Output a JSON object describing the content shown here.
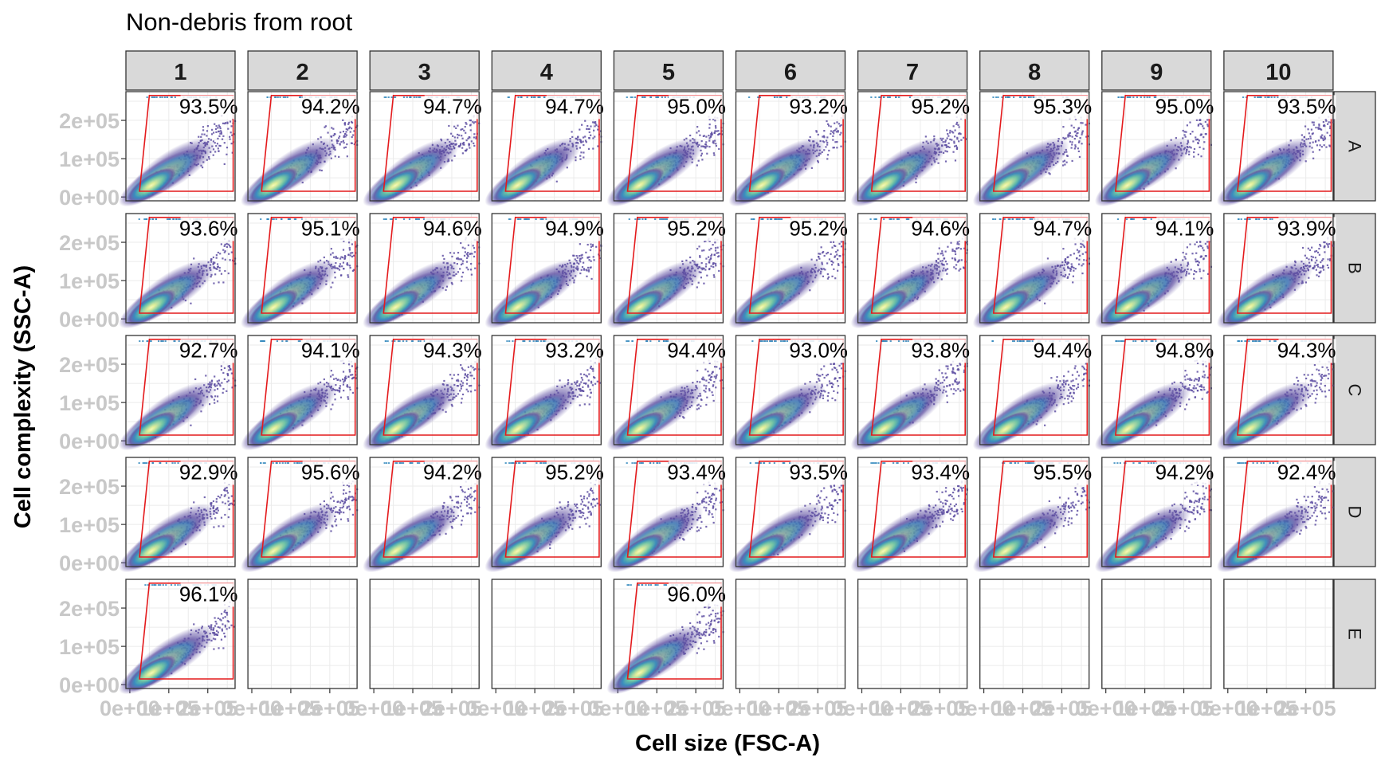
{
  "chart_data": {
    "type": "scatter",
    "subtype": "flow-cytometry-density-faceted",
    "title": "Non-debris from root",
    "xlabel": "Cell size (FSC-A)",
    "ylabel": "Cell complexity (SSC-A)",
    "columns": [
      "1",
      "2",
      "3",
      "4",
      "5",
      "6",
      "7",
      "8",
      "9",
      "10"
    ],
    "rows": [
      "A",
      "B",
      "C",
      "D",
      "E"
    ],
    "x_ticks": [
      "0e+00",
      "1e+05",
      "2e+05"
    ],
    "y_ticks": [
      "0e+00",
      "1e+05",
      "2e+05"
    ],
    "xlim": [
      -10000,
      270000
    ],
    "ylim": [
      -10000,
      275000
    ],
    "gate_polygon": [
      [
        25000,
        15000
      ],
      [
        50000,
        265000
      ],
      [
        265000,
        265000
      ],
      [
        265000,
        15000
      ]
    ],
    "grid": true,
    "colors": {
      "gate": "#e41a1c",
      "strip_fill": "#d9d9d9",
      "panel_border": "#333333",
      "grid": "#ebebeb",
      "density_low": "#5e4fa2",
      "density_mid": "#3288bd",
      "density_high": "#abdda4",
      "density_peak": "#ffffbf",
      "tick_label": "#c8c8c8"
    },
    "panels": [
      {
        "row": "A",
        "col": "1",
        "percent": "93.5%"
      },
      {
        "row": "A",
        "col": "2",
        "percent": "94.2%"
      },
      {
        "row": "A",
        "col": "3",
        "percent": "94.7%"
      },
      {
        "row": "A",
        "col": "4",
        "percent": "94.7%"
      },
      {
        "row": "A",
        "col": "5",
        "percent": "95.0%"
      },
      {
        "row": "A",
        "col": "6",
        "percent": "93.2%"
      },
      {
        "row": "A",
        "col": "7",
        "percent": "95.2%"
      },
      {
        "row": "A",
        "col": "8",
        "percent": "95.3%"
      },
      {
        "row": "A",
        "col": "9",
        "percent": "95.0%"
      },
      {
        "row": "A",
        "col": "10",
        "percent": "93.5%"
      },
      {
        "row": "B",
        "col": "1",
        "percent": "93.6%"
      },
      {
        "row": "B",
        "col": "2",
        "percent": "95.1%"
      },
      {
        "row": "B",
        "col": "3",
        "percent": "94.6%"
      },
      {
        "row": "B",
        "col": "4",
        "percent": "94.9%"
      },
      {
        "row": "B",
        "col": "5",
        "percent": "95.2%"
      },
      {
        "row": "B",
        "col": "6",
        "percent": "95.2%"
      },
      {
        "row": "B",
        "col": "7",
        "percent": "94.6%"
      },
      {
        "row": "B",
        "col": "8",
        "percent": "94.7%"
      },
      {
        "row": "B",
        "col": "9",
        "percent": "94.1%"
      },
      {
        "row": "B",
        "col": "10",
        "percent": "93.9%"
      },
      {
        "row": "C",
        "col": "1",
        "percent": "92.7%"
      },
      {
        "row": "C",
        "col": "2",
        "percent": "94.1%"
      },
      {
        "row": "C",
        "col": "3",
        "percent": "94.3%"
      },
      {
        "row": "C",
        "col": "4",
        "percent": "93.2%"
      },
      {
        "row": "C",
        "col": "5",
        "percent": "94.4%"
      },
      {
        "row": "C",
        "col": "6",
        "percent": "93.0%"
      },
      {
        "row": "C",
        "col": "7",
        "percent": "93.8%"
      },
      {
        "row": "C",
        "col": "8",
        "percent": "94.4%"
      },
      {
        "row": "C",
        "col": "9",
        "percent": "94.8%"
      },
      {
        "row": "C",
        "col": "10",
        "percent": "94.3%"
      },
      {
        "row": "D",
        "col": "1",
        "percent": "92.9%"
      },
      {
        "row": "D",
        "col": "2",
        "percent": "95.6%"
      },
      {
        "row": "D",
        "col": "3",
        "percent": "94.2%"
      },
      {
        "row": "D",
        "col": "4",
        "percent": "95.2%"
      },
      {
        "row": "D",
        "col": "5",
        "percent": "93.4%"
      },
      {
        "row": "D",
        "col": "6",
        "percent": "93.5%"
      },
      {
        "row": "D",
        "col": "7",
        "percent": "93.4%"
      },
      {
        "row": "D",
        "col": "8",
        "percent": "95.5%"
      },
      {
        "row": "D",
        "col": "9",
        "percent": "94.2%"
      },
      {
        "row": "D",
        "col": "10",
        "percent": "92.4%"
      },
      {
        "row": "E",
        "col": "1",
        "percent": "96.1%"
      },
      {
        "row": "E",
        "col": "5",
        "percent": "96.0%"
      }
    ]
  }
}
